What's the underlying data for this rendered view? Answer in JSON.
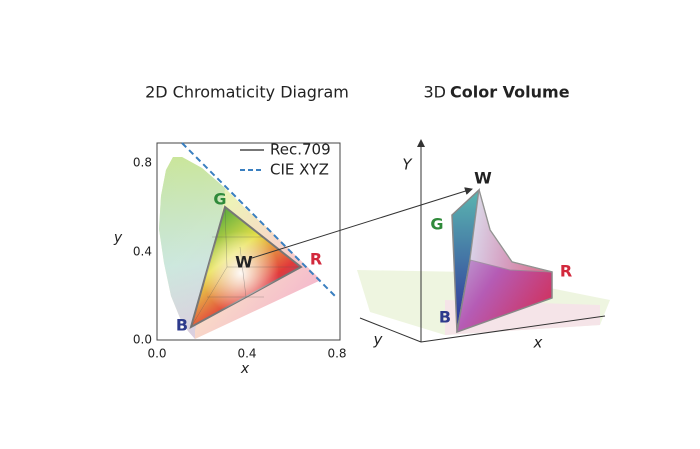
{
  "left_panel": {
    "title": "2D Chromaticity Diagram",
    "x_label": "x",
    "y_label": "y",
    "x_ticks": [
      "0.0",
      "0.4",
      "0.8"
    ],
    "y_ticks": [
      "0.0",
      "0.4",
      "0.8"
    ],
    "legend": [
      "Rec.709",
      "CIE XYZ"
    ],
    "vertices": {
      "green": "G",
      "red": "R",
      "blue": "B",
      "white": "W"
    }
  },
  "right_panel": {
    "title_prefix": "3D",
    "title_bold": "Color Volume",
    "axis_labels": {
      "vertical": "Y",
      "depth": "y",
      "horizontal": "x"
    },
    "vertices": {
      "green": "G",
      "red": "R",
      "blue": "B",
      "white": "W"
    }
  }
}
